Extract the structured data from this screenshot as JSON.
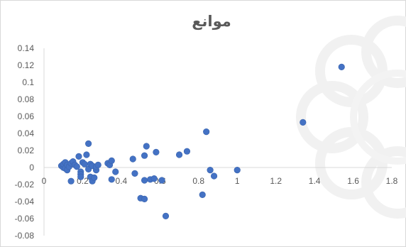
{
  "chart_data": {
    "type": "scatter",
    "title": "موانع",
    "xlabel": "",
    "ylabel": "",
    "xlim": [
      0,
      1.8
    ],
    "ylim": [
      -0.08,
      0.14
    ],
    "x_ticks": [
      "0",
      "0.2",
      "0.4",
      "0.6",
      "0.8",
      "1",
      "1.2",
      "1.4",
      "1.6",
      "1.8"
    ],
    "y_ticks": [
      "0.14",
      "0.12",
      "0.1",
      "0.08",
      "0.06",
      "0.04",
      "0.02",
      "0",
      "-0.02",
      "-0.04",
      "-0.06",
      "-0.08"
    ],
    "grid": false,
    "legend": "none",
    "marker_color": "#4472c4",
    "series": [
      {
        "points": [
          [
            0.09,
            0.002
          ],
          [
            0.1,
            0.0
          ],
          [
            0.1,
            0.004
          ],
          [
            0.11,
            -0.001
          ],
          [
            0.11,
            0.006
          ],
          [
            0.12,
            0.003
          ],
          [
            0.12,
            -0.003
          ],
          [
            0.13,
            0.001
          ],
          [
            0.14,
            0.005
          ],
          [
            0.14,
            -0.016
          ],
          [
            0.15,
            0.007
          ],
          [
            0.16,
            0.003
          ],
          [
            0.17,
            0.001
          ],
          [
            0.18,
            0.013
          ],
          [
            0.19,
            -0.005
          ],
          [
            0.19,
            -0.008
          ],
          [
            0.19,
            -0.011
          ],
          [
            0.2,
            0.006
          ],
          [
            0.21,
            0.004
          ],
          [
            0.22,
            0.015
          ],
          [
            0.23,
            0.028
          ],
          [
            0.23,
            -0.002
          ],
          [
            0.24,
            -0.011
          ],
          [
            0.24,
            0.004
          ],
          [
            0.25,
            -0.016
          ],
          [
            0.25,
            0.002
          ],
          [
            0.26,
            -0.012
          ],
          [
            0.27,
            -0.003
          ],
          [
            0.27,
            0.001
          ],
          [
            0.28,
            0.003
          ],
          [
            0.33,
            0.005
          ],
          [
            0.34,
            0.003
          ],
          [
            0.35,
            -0.014
          ],
          [
            0.35,
            0.008
          ],
          [
            0.37,
            -0.005
          ],
          [
            0.46,
            0.01
          ],
          [
            0.47,
            -0.007
          ],
          [
            0.5,
            -0.036
          ],
          [
            0.52,
            -0.037
          ],
          [
            0.52,
            0.014
          ],
          [
            0.52,
            -0.015
          ],
          [
            0.53,
            0.025
          ],
          [
            0.55,
            -0.014
          ],
          [
            0.57,
            -0.013
          ],
          [
            0.58,
            0.018
          ],
          [
            0.61,
            -0.015
          ],
          [
            0.63,
            -0.057
          ],
          [
            0.7,
            0.015
          ],
          [
            0.74,
            0.019
          ],
          [
            0.82,
            -0.032
          ],
          [
            0.84,
            0.042
          ],
          [
            0.86,
            -0.003
          ],
          [
            0.88,
            -0.01
          ],
          [
            1.0,
            -0.003
          ],
          [
            1.34,
            0.053
          ],
          [
            1.54,
            0.118
          ]
        ]
      }
    ]
  }
}
